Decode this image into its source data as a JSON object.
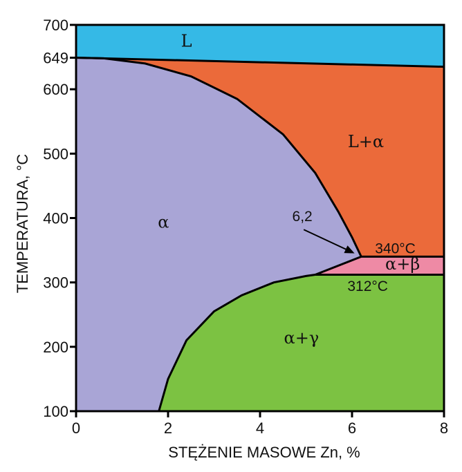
{
  "diagram": {
    "xlabel": "STĘŻENIE MASOWE Zn, %",
    "ylabel": "TEMPERATURA, °C",
    "x_ticks": [
      "0",
      "2",
      "4",
      "6",
      "8"
    ],
    "y_ticks": [
      "700",
      "649",
      "600",
      "500",
      "400",
      "300",
      "200",
      "100"
    ],
    "regions": [
      {
        "id": "L",
        "label": "L",
        "color": "#35b9e6"
      },
      {
        "id": "L-alpha",
        "label": "L+α",
        "color": "#eb6a3a"
      },
      {
        "id": "alpha",
        "label": "α",
        "color": "#a9a5d6"
      },
      {
        "id": "alpha-beta",
        "label": "α+β",
        "color": "#ee8aa5"
      },
      {
        "id": "alpha-gamma",
        "label": "α+γ",
        "color": "#7cc242"
      }
    ],
    "annotations": {
      "solubility": "6,2",
      "eutectic": "340°C",
      "eutectoid": "312°C"
    }
  },
  "chart_data": {
    "type": "phase-diagram",
    "xlabel": "STĘŻENIE MASOWE Zn, %",
    "ylabel": "TEMPERATURA, °C",
    "xlim": [
      0,
      8
    ],
    "ylim": [
      100,
      700
    ],
    "melting_point_mg": 649,
    "eutectic_temperature": 340,
    "max_solubility_zn": 6.2,
    "eutectoid_temperature": 312,
    "liquidus": [
      [
        0,
        649
      ],
      [
        8,
        635
      ]
    ],
    "solidus": [
      [
        0,
        649
      ],
      [
        0.6,
        648
      ],
      [
        1.5,
        640
      ],
      [
        2.5,
        620
      ],
      [
        3.5,
        585
      ],
      [
        4.5,
        530
      ],
      [
        5.2,
        470
      ],
      [
        5.7,
        410
      ],
      [
        6.0,
        370
      ],
      [
        6.2,
        340
      ]
    ],
    "solvus_alpha_beta": [
      [
        5.2,
        312
      ],
      [
        6.2,
        340
      ]
    ],
    "solvus_alpha_gamma": [
      [
        1.8,
        100
      ],
      [
        2.0,
        150
      ],
      [
        2.4,
        210
      ],
      [
        3.0,
        255
      ],
      [
        3.6,
        280
      ],
      [
        4.3,
        300
      ],
      [
        5.0,
        310
      ],
      [
        5.2,
        312
      ]
    ]
  }
}
